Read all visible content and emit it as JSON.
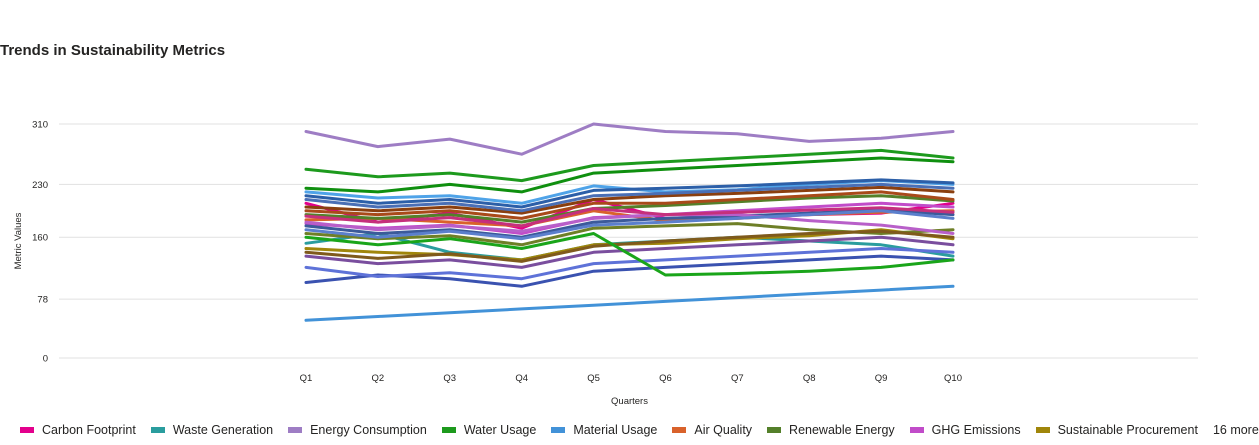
{
  "chart_data": {
    "type": "line",
    "title": "Trends in Sustainability Metrics",
    "xlabel": "Quarters",
    "ylabel": "Metric Values",
    "categories": [
      "Q1",
      "Q2",
      "Q3",
      "Q4",
      "Q5",
      "Q6",
      "Q7",
      "Q8",
      "Q9",
      "Q10"
    ],
    "y_ticks": [
      0,
      78,
      160,
      230,
      310
    ],
    "ylim": [
      0,
      310
    ],
    "grid": true,
    "legend_position": "bottom",
    "legend_more": "16 more",
    "series": [
      {
        "name": "Carbon Footprint",
        "color": "#E3008C",
        "values": [
          205,
          180,
          192,
          172,
          210,
          185,
          188,
          190,
          192,
          205
        ]
      },
      {
        "name": "Waste Generation",
        "color": "#2A9D9E",
        "values": [
          152,
          165,
          140,
          130,
          150,
          155,
          160,
          155,
          150,
          135
        ]
      },
      {
        "name": "Energy Consumption",
        "color": "#9E7DC4",
        "values": [
          300,
          280,
          290,
          270,
          310,
          300,
          297,
          287,
          291,
          300
        ]
      },
      {
        "name": "Water Usage",
        "color": "#1D9A1D",
        "values": [
          250,
          240,
          245,
          235,
          255,
          260,
          265,
          270,
          275,
          265
        ]
      },
      {
        "name": "Material Usage",
        "color": "#4292D8",
        "values": [
          50,
          55,
          60,
          65,
          70,
          75,
          80,
          85,
          90,
          95
        ]
      },
      {
        "name": "Air Quality",
        "color": "#D9622B",
        "values": [
          183,
          185,
          180,
          175,
          195,
          182,
          185,
          190,
          193,
          195
        ]
      },
      {
        "name": "Renewable Energy",
        "color": "#54802A",
        "values": [
          190,
          185,
          190,
          180,
          198,
          202,
          207,
          212,
          215,
          208
        ]
      },
      {
        "name": "GHG Emissions",
        "color": "#C14CC9",
        "values": [
          178,
          172,
          176,
          165,
          186,
          190,
          195,
          200,
          205,
          200
        ]
      },
      {
        "name": "Sustainable Procurement",
        "color": "#A0860B",
        "values": [
          145,
          140,
          137,
          130,
          150,
          152,
          158,
          162,
          170,
          158
        ]
      },
      {
        "values": [
          225,
          220,
          230,
          220,
          245,
          250,
          255,
          260,
          265,
          260
        ],
        "color": "#0F8F0F"
      },
      {
        "values": [
          220,
          212,
          215,
          205,
          228,
          220,
          223,
          230,
          235,
          230
        ],
        "color": "#4FA3E8"
      },
      {
        "values": [
          200,
          195,
          200,
          192,
          210,
          215,
          218,
          222,
          226,
          220
        ],
        "color": "#8A3F0F"
      },
      {
        "values": [
          210,
          200,
          205,
          195,
          215,
          218,
          222,
          226,
          230,
          225
        ],
        "color": "#4A6FB5"
      },
      {
        "values": [
          175,
          165,
          170,
          160,
          180,
          185,
          188,
          192,
          196,
          190
        ],
        "color": "#3C5A9A"
      },
      {
        "values": [
          135,
          125,
          130,
          120,
          140,
          145,
          150,
          155,
          160,
          150
        ],
        "color": "#7A4E9E"
      },
      {
        "values": [
          100,
          110,
          105,
          95,
          115,
          120,
          125,
          130,
          135,
          130
        ],
        "color": "#3A52B0"
      },
      {
        "values": [
          120,
          108,
          113,
          105,
          125,
          130,
          135,
          140,
          145,
          140
        ],
        "color": "#5E72D8"
      },
      {
        "values": [
          165,
          158,
          162,
          150,
          172,
          175,
          178,
          170,
          165,
          170
        ],
        "color": "#6E7F27"
      },
      {
        "values": [
          140,
          132,
          138,
          128,
          148,
          155,
          160,
          165,
          168,
          160
        ],
        "color": "#7F5A1C"
      },
      {
        "values": [
          180,
          170,
          175,
          168,
          185,
          190,
          190,
          182,
          176,
          165
        ],
        "color": "#B85FC9"
      },
      {
        "values": [
          160,
          150,
          158,
          145,
          165,
          110,
          112,
          115,
          120,
          130
        ],
        "color": "#1AA51A"
      },
      {
        "values": [
          195,
          190,
          195,
          185,
          205,
          205,
          210,
          215,
          220,
          210
        ],
        "color": "#A94A1A"
      },
      {
        "values": [
          170,
          160,
          168,
          158,
          176,
          180,
          185,
          190,
          195,
          185
        ],
        "color": "#5B7FCC"
      },
      {
        "values": [
          188,
          180,
          186,
          175,
          198,
          190,
          193,
          196,
          199,
          193
        ],
        "color": "#C5307C"
      },
      {
        "values": [
          215,
          205,
          210,
          200,
          222,
          225,
          228,
          232,
          236,
          232
        ],
        "color": "#2C5FA8"
      }
    ]
  }
}
